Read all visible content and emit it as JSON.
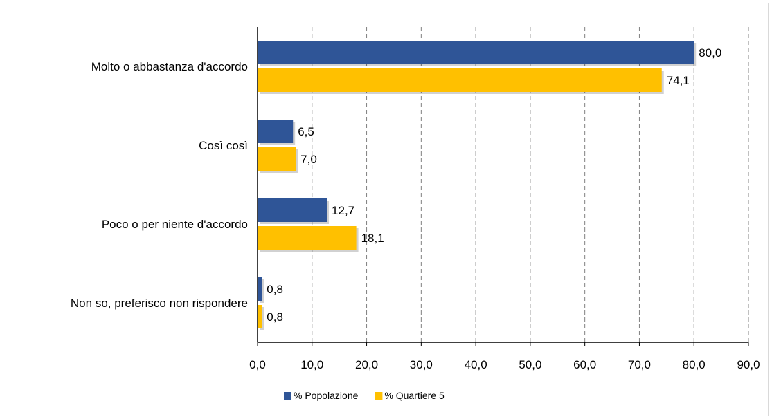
{
  "chart_data": {
    "type": "bar",
    "orientation": "horizontal",
    "title": "",
    "xlabel": "",
    "ylabel": "",
    "xlim": [
      0,
      90
    ],
    "tick_step": 10,
    "ticks": [
      "0,0",
      "10,0",
      "20,0",
      "30,0",
      "40,0",
      "50,0",
      "60,0",
      "70,0",
      "80,0",
      "90,0"
    ],
    "grid": "vertical-dashed",
    "legend_position": "bottom",
    "categories": [
      "Molto o abbastanza d'accordo",
      "Così così",
      "Poco o per niente d'accordo",
      "Non so, preferisco non rispondere"
    ],
    "series": [
      {
        "name": "% Popolazione",
        "color": "#2F5597",
        "values": [
          80.0,
          6.5,
          12.7,
          0.8
        ],
        "labels": [
          "80,0",
          "6,5",
          "12,7",
          "0,8"
        ]
      },
      {
        "name": "% Quartiere 5",
        "color": "#FFC000",
        "values": [
          74.1,
          7.0,
          18.1,
          0.8
        ],
        "labels": [
          "74,1",
          "7,0",
          "18,1",
          "0,8"
        ]
      }
    ]
  }
}
